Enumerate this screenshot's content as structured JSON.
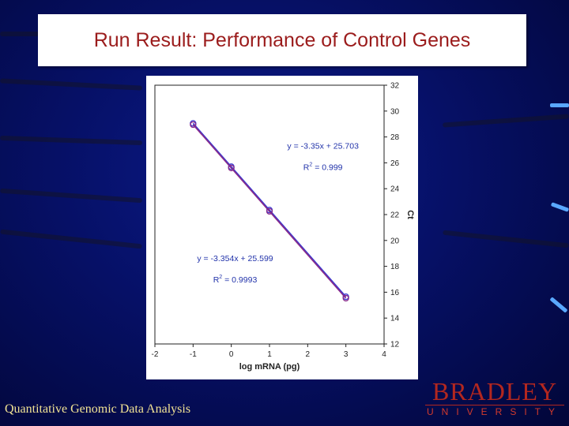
{
  "slide": {
    "title": "Run Result: Performance of Control Genes",
    "footer_text": "Quantitative Genomic Data Analysis",
    "logo_name": "BRADLEY",
    "logo_sub": "UNIVERSITY"
  },
  "colors": {
    "title_text": "#9b1c1c",
    "footer_text": "#f2e394",
    "logo": "#b3271f",
    "series_1": "#3a3ad0",
    "series_2": "#8a2a8a"
  },
  "chart_data": {
    "type": "scatter",
    "title": "",
    "xlabel": "log mRNA (pg)",
    "ylabel": "Ct",
    "xlim": [
      -2,
      4
    ],
    "ylim": [
      12,
      32
    ],
    "xticks": [
      -2,
      -1,
      0,
      1,
      2,
      3,
      4
    ],
    "yticks": [
      12,
      14,
      16,
      18,
      20,
      22,
      24,
      26,
      28,
      30,
      32
    ],
    "y_axis_position": "right",
    "grid": false,
    "series": [
      {
        "x": [
          -1,
          0,
          1,
          3
        ],
        "y": [
          29.05,
          25.7,
          22.35,
          15.65
        ],
        "fit": {
          "slope": -3.35,
          "intercept": 25.703
        }
      },
      {
        "x": [
          -1,
          0,
          1,
          3
        ],
        "y": [
          28.95,
          25.6,
          22.25,
          15.54
        ],
        "fit": {
          "slope": -3.354,
          "intercept": 25.599
        }
      }
    ],
    "annotations": [
      {
        "equation": "y = -3.35x + 25.703",
        "r_label": "R",
        "r_exp": "2",
        "r_value": " = 0.999",
        "anchor_x": 2.4,
        "anchor_y": 27.1
      },
      {
        "equation": "y = -3.354x + 25.599",
        "r_label": "R",
        "r_exp": "2",
        "r_value": " = 0.9993",
        "anchor_x": 0.1,
        "anchor_y": 18.4
      }
    ]
  }
}
